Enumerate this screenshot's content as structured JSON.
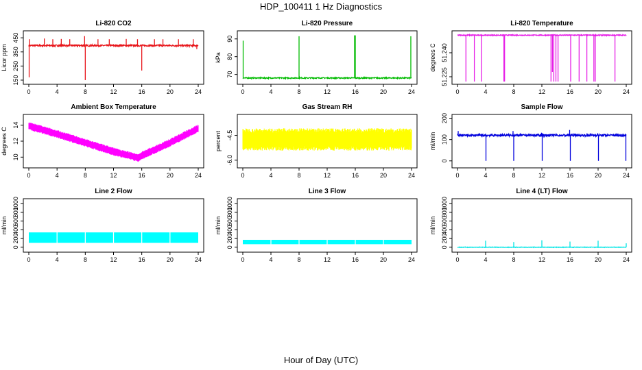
{
  "title": "HDP_100411  1 Hz Diagnostics",
  "xlabel": "Hour of Day (UTC)",
  "chart_data": [
    {
      "type": "line",
      "title": "Li-820 CO2",
      "ylabel": "Licor ppm",
      "color": "#e8161b",
      "xlim": [
        0,
        24
      ],
      "ylim": [
        140,
        480
      ],
      "xticks": [
        0,
        4,
        8,
        12,
        16,
        20,
        24
      ],
      "yticks": [
        150,
        250,
        350,
        450
      ],
      "baseline": 395,
      "noise": 6,
      "spikes": [
        {
          "x": 0.05,
          "y": 170
        },
        {
          "x": 0.1,
          "y": 440
        },
        {
          "x": 2.2,
          "y": 445
        },
        {
          "x": 3.4,
          "y": 440
        },
        {
          "x": 4.6,
          "y": 442
        },
        {
          "x": 5.8,
          "y": 440
        },
        {
          "x": 7.9,
          "y": 462
        },
        {
          "x": 8.0,
          "y": 150
        },
        {
          "x": 9.8,
          "y": 440
        },
        {
          "x": 11.4,
          "y": 440
        },
        {
          "x": 13.8,
          "y": 442
        },
        {
          "x": 15.4,
          "y": 440
        },
        {
          "x": 16.0,
          "y": 218
        },
        {
          "x": 17.8,
          "y": 440
        },
        {
          "x": 19.0,
          "y": 440
        },
        {
          "x": 21.2,
          "y": 440
        },
        {
          "x": 23.3,
          "y": 440
        },
        {
          "x": 23.8,
          "y": 370
        }
      ]
    },
    {
      "type": "line",
      "title": "Li-820 Pressure",
      "ylabel": "kPa",
      "color": "#00bb00",
      "xlim": [
        0,
        24
      ],
      "ylim": [
        66,
        93
      ],
      "xticks": [
        0,
        4,
        8,
        12,
        16,
        20,
        24
      ],
      "yticks": [
        70,
        80,
        90
      ],
      "baseline": 68,
      "noise": 0.3,
      "spikes": [
        {
          "x": 0.05,
          "y": 89
        },
        {
          "x": 8.0,
          "y": 91.5
        },
        {
          "x": 15.9,
          "y": 92
        },
        {
          "x": 16.0,
          "y": 92
        },
        {
          "x": 23.9,
          "y": 91.5
        }
      ]
    },
    {
      "type": "line",
      "title": "Li-820 Temperature",
      "ylabel": "degrees C",
      "color": "#e61ee6",
      "xlim": [
        0,
        24
      ],
      "ylim": [
        51.222,
        51.252
      ],
      "xticks": [
        0,
        4,
        8,
        12,
        16,
        20,
        24
      ],
      "yticks": [
        51.225,
        51.24
      ],
      "ytick_labels": [
        "51.225",
        "51.240"
      ],
      "baseline": 51.251,
      "noise": 0.0003,
      "spikes": [
        {
          "x": 1.2,
          "y": 51.222
        },
        {
          "x": 2.4,
          "y": 51.222
        },
        {
          "x": 3.4,
          "y": 51.222
        },
        {
          "x": 6.6,
          "y": 51.222
        },
        {
          "x": 6.7,
          "y": 51.222
        },
        {
          "x": 13.3,
          "y": 51.222
        },
        {
          "x": 13.5,
          "y": 51.228
        },
        {
          "x": 13.7,
          "y": 51.222
        },
        {
          "x": 14.0,
          "y": 51.222
        },
        {
          "x": 14.3,
          "y": 51.222
        },
        {
          "x": 16.1,
          "y": 51.222
        },
        {
          "x": 17.3,
          "y": 51.222
        },
        {
          "x": 18.4,
          "y": 51.222
        },
        {
          "x": 19.4,
          "y": 51.222
        },
        {
          "x": 19.6,
          "y": 51.222
        },
        {
          "x": 22.4,
          "y": 51.222
        }
      ]
    },
    {
      "type": "line",
      "title": "Ambient Box Temperature",
      "ylabel": "degrees C",
      "color": "#ff00ff",
      "xlim": [
        0,
        24
      ],
      "ylim": [
        9,
        15
      ],
      "xticks": [
        0,
        4,
        8,
        12,
        16,
        20,
        24
      ],
      "yticks": [
        10,
        12,
        14
      ],
      "trend": [
        {
          "x": 0,
          "y": 13.9
        },
        {
          "x": 4,
          "y": 12.9
        },
        {
          "x": 8,
          "y": 11.8
        },
        {
          "x": 12,
          "y": 10.7
        },
        {
          "x": 15.5,
          "y": 9.9
        },
        {
          "x": 16,
          "y": 10.2
        },
        {
          "x": 20,
          "y": 11.8
        },
        {
          "x": 24,
          "y": 13.6
        }
      ],
      "band": 1.0
    },
    {
      "type": "line",
      "title": "Gas Stream RH",
      "ylabel": "percent",
      "color": "#ffff00",
      "xlim": [
        0,
        24
      ],
      "ylim": [
        -6.3,
        -3.4
      ],
      "xticks": [
        0,
        4,
        8,
        12,
        16,
        20,
        24
      ],
      "yticks": [
        -6.0,
        -4.5
      ],
      "ytick_labels": [
        "-6.0",
        "-4.5"
      ],
      "trend": [
        {
          "x": 0,
          "y": -4.75
        },
        {
          "x": 24,
          "y": -4.75
        }
      ],
      "band": 1.35
    },
    {
      "type": "line",
      "title": "Sample Flow",
      "ylabel": "ml/min",
      "color": "#0000dd",
      "xlim": [
        0,
        24
      ],
      "ylim": [
        -20,
        205
      ],
      "xticks": [
        0,
        4,
        8,
        12,
        16,
        20,
        24
      ],
      "yticks": [
        0,
        100,
        200
      ],
      "baseline": 120,
      "noise": 5,
      "spikes": [
        {
          "x": 0.1,
          "y": 140
        },
        {
          "x": 4.0,
          "y": 128
        },
        {
          "x": 4.05,
          "y": 0
        },
        {
          "x": 7.9,
          "y": 140
        },
        {
          "x": 8.0,
          "y": 0
        },
        {
          "x": 11.95,
          "y": 132
        },
        {
          "x": 12.05,
          "y": 0
        },
        {
          "x": 15.95,
          "y": 145
        },
        {
          "x": 16.05,
          "y": 0
        },
        {
          "x": 19.95,
          "y": 130
        },
        {
          "x": 20.05,
          "y": 0
        },
        {
          "x": 23.95,
          "y": 0
        }
      ]
    },
    {
      "type": "area",
      "title": "Line 2 Flow",
      "ylabel": "ml/min",
      "color": "#00ffff",
      "xlim": [
        0,
        24
      ],
      "ylim": [
        -50,
        1050
      ],
      "xticks": [
        0,
        4,
        8,
        12,
        16,
        20,
        24
      ],
      "yticks": [
        0,
        200,
        400,
        600,
        800,
        1000
      ],
      "band_low": 100,
      "band_high": 340,
      "gaps": [
        4,
        8,
        12,
        16,
        20
      ]
    },
    {
      "type": "area",
      "title": "Line 3 Flow",
      "ylabel": "ml/min",
      "color": "#00ffff",
      "xlim": [
        0,
        24
      ],
      "ylim": [
        -50,
        1050
      ],
      "xticks": [
        0,
        4,
        8,
        12,
        16,
        20,
        24
      ],
      "yticks": [
        0,
        200,
        400,
        600,
        800,
        1000
      ],
      "band_low": 70,
      "band_high": 170,
      "gaps": [
        4,
        8,
        12,
        16,
        20
      ]
    },
    {
      "type": "line",
      "title": "Line 4 (LT) Flow",
      "ylabel": "ml/min",
      "color": "#00e5e5",
      "xlim": [
        0,
        24
      ],
      "ylim": [
        -50,
        1050
      ],
      "xticks": [
        0,
        4,
        8,
        12,
        16,
        20,
        24
      ],
      "yticks": [
        0,
        200,
        400,
        600,
        800,
        1000
      ],
      "baseline": 0,
      "noise": 6,
      "spikes": [
        {
          "x": 4.0,
          "y": 150
        },
        {
          "x": 8.0,
          "y": 120
        },
        {
          "x": 12.0,
          "y": 160
        },
        {
          "x": 16.0,
          "y": 130
        },
        {
          "x": 20.0,
          "y": 150
        },
        {
          "x": 24.0,
          "y": 90
        }
      ]
    }
  ]
}
